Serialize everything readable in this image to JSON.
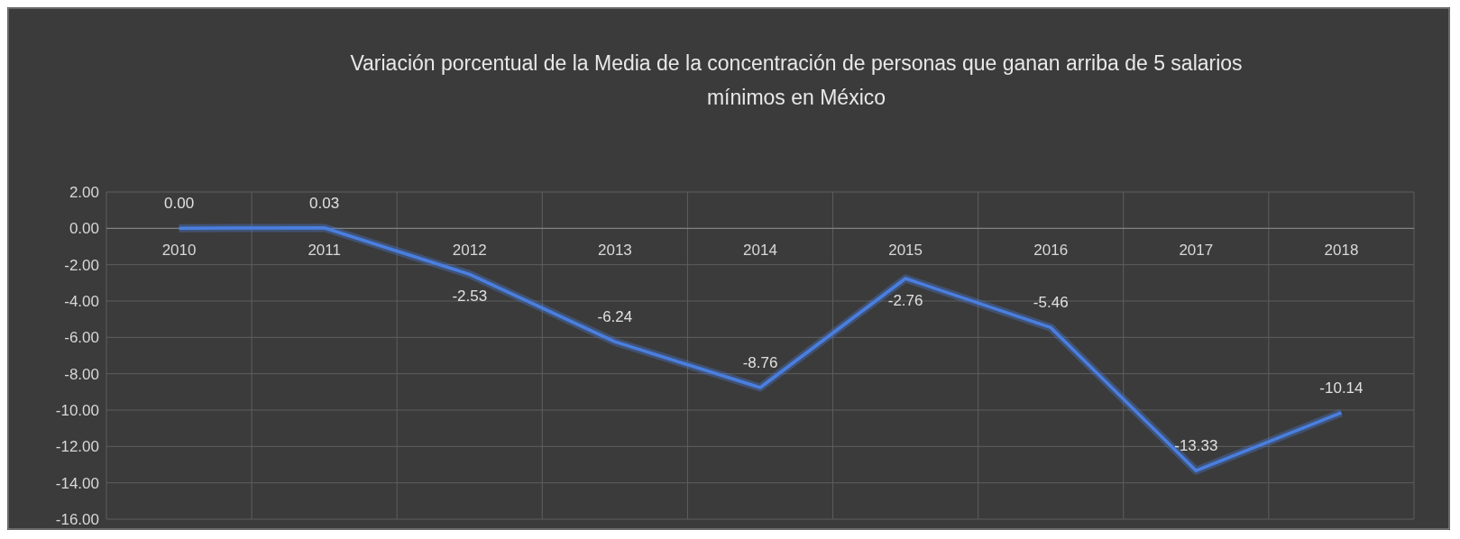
{
  "chart_data": {
    "type": "line",
    "title": "Variación porcentual de la Media de la concentración de personas que ganan arriba de 5 salarios mínimos  en México",
    "categories": [
      "2010",
      "2011",
      "2012",
      "2013",
      "2014",
      "2015",
      "2016",
      "2017",
      "2018"
    ],
    "values": [
      0.0,
      0.03,
      -2.53,
      -6.24,
      -8.76,
      -2.76,
      -5.46,
      -13.33,
      -10.14
    ],
    "value_labels": [
      "0.00",
      "0.03",
      "-2.53",
      "-6.24",
      "-8.76",
      "-2.76",
      "-5.46",
      "-13.33",
      "-10.14"
    ],
    "color": "#4a7fe0",
    "ylim": [
      -16,
      2
    ],
    "yticks": [
      {
        "value": 2,
        "label": "2.00"
      },
      {
        "value": 0,
        "label": "0.00"
      },
      {
        "value": -2,
        "label": "-2.00"
      },
      {
        "value": -4,
        "label": "-4.00"
      },
      {
        "value": -6,
        "label": "-6.00"
      },
      {
        "value": -8,
        "label": "-8.00"
      },
      {
        "value": -10,
        "label": "-10.00"
      },
      {
        "value": -12,
        "label": "-12.00"
      },
      {
        "value": -14,
        "label": "-14.00"
      },
      {
        "value": -16,
        "label": "-16.00"
      }
    ],
    "grid": true,
    "marker": "none",
    "line_style": "solid"
  }
}
